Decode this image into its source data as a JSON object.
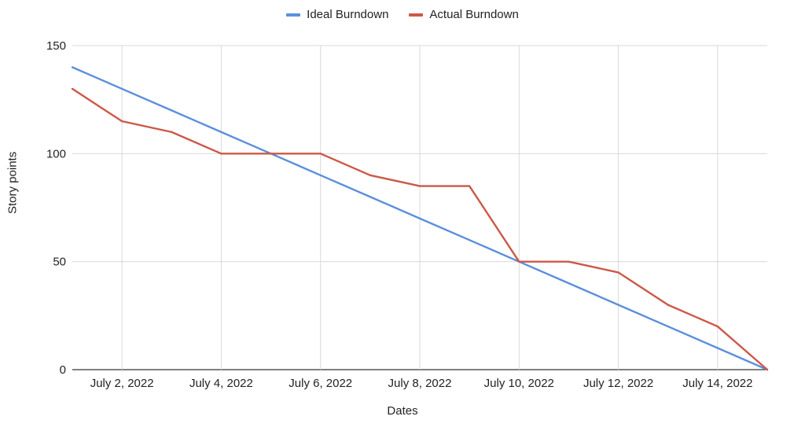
{
  "chart_data": {
    "type": "line",
    "xlabel": "Dates",
    "ylabel": "Story points",
    "ylim": [
      0,
      150
    ],
    "yticks": [
      0,
      50,
      100,
      150
    ],
    "x_tick_labels": [
      "July 2, 2022",
      "July 4, 2022",
      "July 6, 2022",
      "July 8, 2022",
      "July 10, 2022",
      "July 12, 2022",
      "July 14, 2022"
    ],
    "x": [
      "2022-07-01",
      "2022-07-02",
      "2022-07-03",
      "2022-07-04",
      "2022-07-05",
      "2022-07-06",
      "2022-07-07",
      "2022-07-08",
      "2022-07-09",
      "2022-07-10",
      "2022-07-11",
      "2022-07-12",
      "2022-07-13",
      "2022-07-14",
      "2022-07-15"
    ],
    "series": [
      {
        "name": "Ideal Burndown",
        "color": "#5b8fdc",
        "values": [
          140,
          130,
          120,
          110,
          100,
          90,
          80,
          70,
          60,
          50,
          40,
          30,
          20,
          10,
          0
        ]
      },
      {
        "name": "Actual Burndown",
        "color": "#cc5848",
        "values": [
          130,
          115,
          110,
          100,
          100,
          100,
          90,
          85,
          85,
          50,
          50,
          45,
          30,
          20,
          0
        ]
      }
    ],
    "legend_position": "top-center",
    "grid": true,
    "gridline_color": "#d9d9d9"
  }
}
